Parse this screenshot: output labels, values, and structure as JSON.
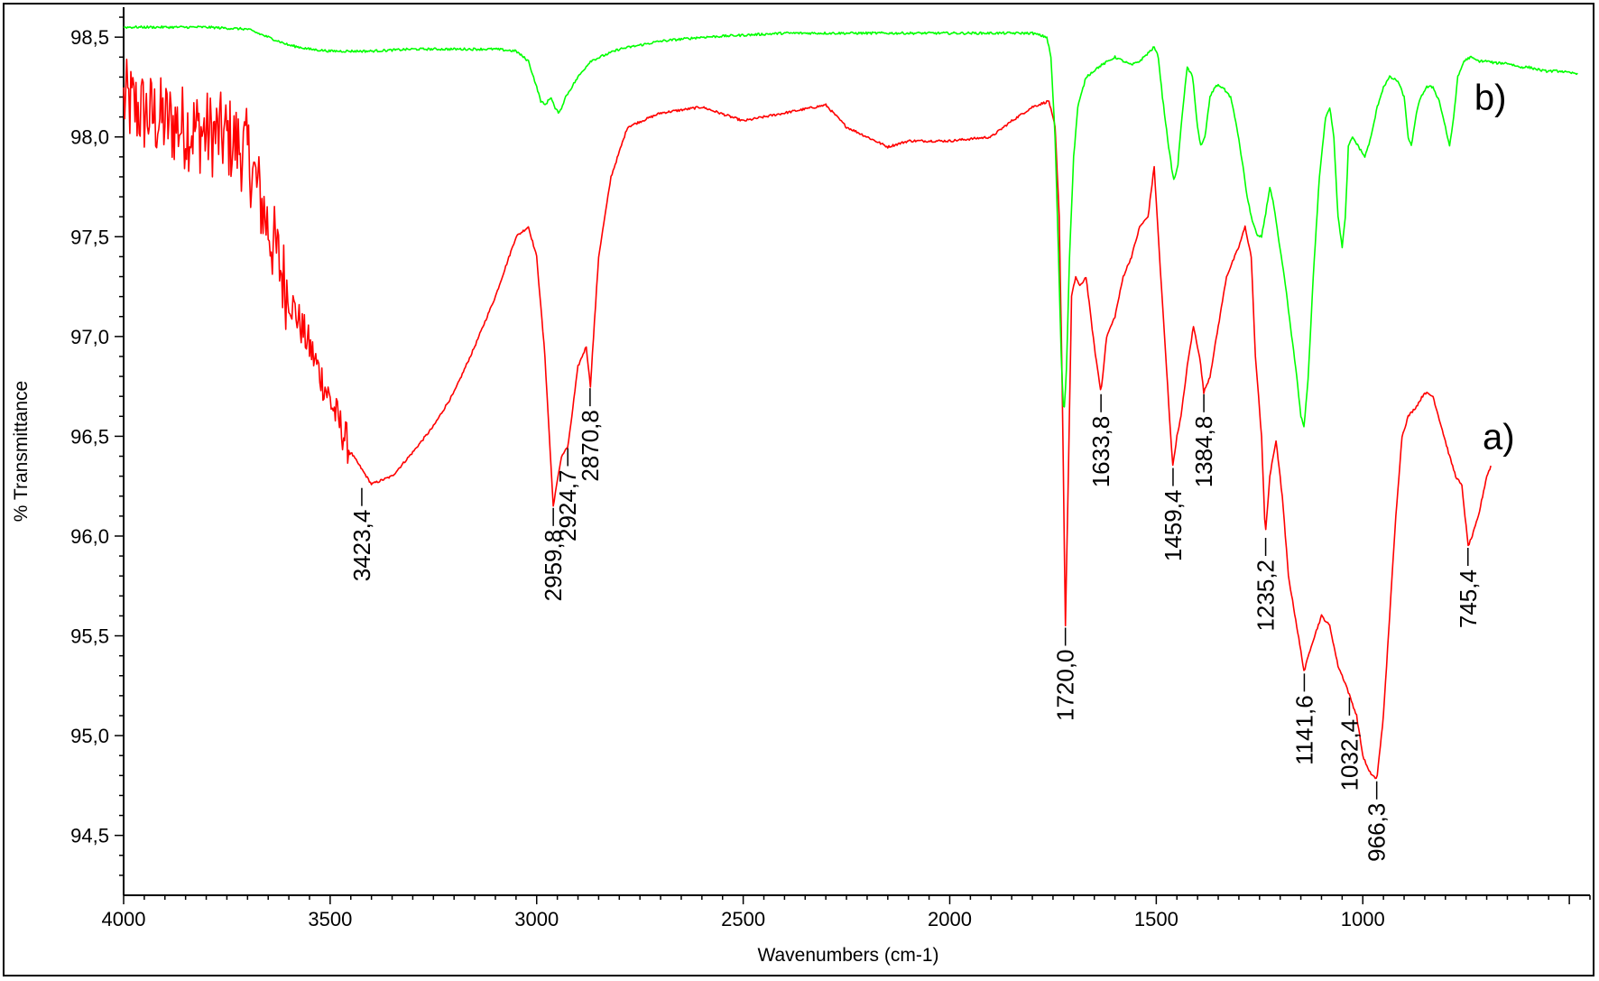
{
  "chart_data": {
    "type": "line",
    "title": "",
    "xlabel": "Wavenumbers (cm-1)",
    "ylabel": "% Transmittance",
    "xlim": [
      4000,
      450
    ],
    "ylim": [
      94.2,
      98.65
    ],
    "x_reversed": true,
    "grid": false,
    "legend": "none",
    "x_ticks": [
      {
        "value": 4000,
        "label": "4000"
      },
      {
        "value": 3500,
        "label": "3500"
      },
      {
        "value": 3000,
        "label": "3000"
      },
      {
        "value": 2500,
        "label": "2500"
      },
      {
        "value": 2000,
        "label": "2000"
      },
      {
        "value": 1500,
        "label": "1500"
      },
      {
        "value": 1000,
        "label": "1000"
      }
    ],
    "y_ticks": [
      {
        "value": 98.5,
        "label": "98,5"
      },
      {
        "value": 98.0,
        "label": "98,0"
      },
      {
        "value": 97.5,
        "label": "97,5"
      },
      {
        "value": 97.0,
        "label": "97,0"
      },
      {
        "value": 96.5,
        "label": "96,5"
      },
      {
        "value": 96.0,
        "label": "96,0"
      },
      {
        "value": 95.5,
        "label": "95,5"
      },
      {
        "value": 95.0,
        "label": "95,0"
      },
      {
        "value": 94.5,
        "label": "94,5"
      }
    ],
    "series": [
      {
        "name": "a)",
        "color": "#ff0000",
        "noise_above": 3450,
        "points": [
          [
            4000,
            98.18
          ],
          [
            3950,
            98.12
          ],
          [
            3900,
            98.08
          ],
          [
            3850,
            98.05
          ],
          [
            3800,
            98.02
          ],
          [
            3750,
            98.0
          ],
          [
            3700,
            97.92
          ],
          [
            3650,
            97.55
          ],
          [
            3600,
            97.2
          ],
          [
            3550,
            96.95
          ],
          [
            3500,
            96.68
          ],
          [
            3450,
            96.42
          ],
          [
            3400,
            96.26
          ],
          [
            3350,
            96.3
          ],
          [
            3300,
            96.42
          ],
          [
            3250,
            96.55
          ],
          [
            3200,
            96.72
          ],
          [
            3150,
            96.95
          ],
          [
            3100,
            97.2
          ],
          [
            3050,
            97.5
          ],
          [
            3020,
            97.55
          ],
          [
            3000,
            97.4
          ],
          [
            2980,
            96.9
          ],
          [
            2960,
            96.15
          ],
          [
            2940,
            96.4
          ],
          [
            2924,
            96.45
          ],
          [
            2900,
            96.85
          ],
          [
            2880,
            96.95
          ],
          [
            2870,
            96.75
          ],
          [
            2850,
            97.4
          ],
          [
            2820,
            97.8
          ],
          [
            2780,
            98.05
          ],
          [
            2700,
            98.12
          ],
          [
            2600,
            98.15
          ],
          [
            2500,
            98.08
          ],
          [
            2400,
            98.12
          ],
          [
            2300,
            98.16
          ],
          [
            2250,
            98.05
          ],
          [
            2200,
            98.0
          ],
          [
            2150,
            97.95
          ],
          [
            2100,
            97.98
          ],
          [
            2000,
            97.98
          ],
          [
            1900,
            98.0
          ],
          [
            1850,
            98.08
          ],
          [
            1800,
            98.15
          ],
          [
            1760,
            98.18
          ],
          [
            1745,
            98.05
          ],
          [
            1735,
            97.6
          ],
          [
            1728,
            96.8
          ],
          [
            1720,
            95.55
          ],
          [
            1712,
            96.4
          ],
          [
            1705,
            97.2
          ],
          [
            1695,
            97.3
          ],
          [
            1685,
            97.25
          ],
          [
            1670,
            97.3
          ],
          [
            1650,
            96.95
          ],
          [
            1634,
            96.72
          ],
          [
            1620,
            97.0
          ],
          [
            1600,
            97.1
          ],
          [
            1580,
            97.3
          ],
          [
            1560,
            97.4
          ],
          [
            1540,
            97.55
          ],
          [
            1520,
            97.6
          ],
          [
            1505,
            97.85
          ],
          [
            1495,
            97.5
          ],
          [
            1480,
            97.0
          ],
          [
            1468,
            96.6
          ],
          [
            1460,
            96.35
          ],
          [
            1450,
            96.5
          ],
          [
            1440,
            96.6
          ],
          [
            1425,
            96.85
          ],
          [
            1410,
            97.05
          ],
          [
            1395,
            96.9
          ],
          [
            1385,
            96.72
          ],
          [
            1370,
            96.8
          ],
          [
            1350,
            97.05
          ],
          [
            1330,
            97.3
          ],
          [
            1300,
            97.45
          ],
          [
            1285,
            97.55
          ],
          [
            1270,
            97.4
          ],
          [
            1260,
            96.9
          ],
          [
            1245,
            96.5
          ],
          [
            1236,
            96.0
          ],
          [
            1225,
            96.3
          ],
          [
            1210,
            96.48
          ],
          [
            1195,
            96.2
          ],
          [
            1180,
            95.8
          ],
          [
            1160,
            95.55
          ],
          [
            1142,
            95.32
          ],
          [
            1125,
            95.45
          ],
          [
            1100,
            95.6
          ],
          [
            1080,
            95.55
          ],
          [
            1060,
            95.35
          ],
          [
            1040,
            95.25
          ],
          [
            1032,
            95.2
          ],
          [
            1015,
            95.1
          ],
          [
            1000,
            94.9
          ],
          [
            985,
            94.82
          ],
          [
            966,
            94.78
          ],
          [
            950,
            95.1
          ],
          [
            935,
            95.6
          ],
          [
            920,
            96.1
          ],
          [
            905,
            96.5
          ],
          [
            890,
            96.6
          ],
          [
            870,
            96.65
          ],
          [
            850,
            96.72
          ],
          [
            830,
            96.7
          ],
          [
            810,
            96.55
          ],
          [
            790,
            96.4
          ],
          [
            775,
            96.3
          ],
          [
            760,
            96.25
          ],
          [
            745,
            95.95
          ],
          [
            735,
            96.0
          ],
          [
            720,
            96.1
          ],
          [
            700,
            96.3
          ],
          [
            690,
            96.35
          ]
        ]
      },
      {
        "name": "b)",
        "color": "#00ff00",
        "noise_above": 0,
        "points": [
          [
            4000,
            98.55
          ],
          [
            3900,
            98.55
          ],
          [
            3800,
            98.55
          ],
          [
            3700,
            98.54
          ],
          [
            3650,
            98.5
          ],
          [
            3600,
            98.46
          ],
          [
            3550,
            98.44
          ],
          [
            3500,
            98.43
          ],
          [
            3400,
            98.43
          ],
          [
            3300,
            98.44
          ],
          [
            3200,
            98.44
          ],
          [
            3100,
            98.44
          ],
          [
            3050,
            98.43
          ],
          [
            3020,
            98.38
          ],
          [
            3000,
            98.25
          ],
          [
            2990,
            98.18
          ],
          [
            2980,
            98.16
          ],
          [
            2965,
            98.2
          ],
          [
            2955,
            98.14
          ],
          [
            2945,
            98.12
          ],
          [
            2930,
            98.2
          ],
          [
            2900,
            98.3
          ],
          [
            2870,
            98.38
          ],
          [
            2800,
            98.44
          ],
          [
            2700,
            98.48
          ],
          [
            2600,
            98.5
          ],
          [
            2500,
            98.51
          ],
          [
            2400,
            98.52
          ],
          [
            2300,
            98.52
          ],
          [
            2200,
            98.52
          ],
          [
            2100,
            98.52
          ],
          [
            2000,
            98.52
          ],
          [
            1900,
            98.52
          ],
          [
            1800,
            98.52
          ],
          [
            1765,
            98.5
          ],
          [
            1755,
            98.4
          ],
          [
            1745,
            98.0
          ],
          [
            1738,
            97.5
          ],
          [
            1730,
            96.9
          ],
          [
            1724,
            96.6
          ],
          [
            1718,
            96.8
          ],
          [
            1710,
            97.4
          ],
          [
            1700,
            97.9
          ],
          [
            1690,
            98.15
          ],
          [
            1670,
            98.3
          ],
          [
            1640,
            98.35
          ],
          [
            1600,
            98.4
          ],
          [
            1580,
            98.38
          ],
          [
            1560,
            98.36
          ],
          [
            1540,
            98.38
          ],
          [
            1520,
            98.42
          ],
          [
            1505,
            98.45
          ],
          [
            1495,
            98.4
          ],
          [
            1485,
            98.2
          ],
          [
            1470,
            97.95
          ],
          [
            1458,
            97.78
          ],
          [
            1448,
            97.85
          ],
          [
            1438,
            98.1
          ],
          [
            1425,
            98.35
          ],
          [
            1412,
            98.3
          ],
          [
            1400,
            98.05
          ],
          [
            1392,
            97.95
          ],
          [
            1382,
            98.0
          ],
          [
            1370,
            98.2
          ],
          [
            1355,
            98.26
          ],
          [
            1340,
            98.25
          ],
          [
            1320,
            98.2
          ],
          [
            1305,
            98.05
          ],
          [
            1290,
            97.85
          ],
          [
            1280,
            97.7
          ],
          [
            1270,
            97.6
          ],
          [
            1255,
            97.5
          ],
          [
            1245,
            97.5
          ],
          [
            1235,
            97.62
          ],
          [
            1225,
            97.75
          ],
          [
            1215,
            97.65
          ],
          [
            1205,
            97.5
          ],
          [
            1190,
            97.3
          ],
          [
            1175,
            97.05
          ],
          [
            1160,
            96.8
          ],
          [
            1150,
            96.6
          ],
          [
            1142,
            96.55
          ],
          [
            1132,
            96.8
          ],
          [
            1120,
            97.3
          ],
          [
            1105,
            97.8
          ],
          [
            1090,
            98.1
          ],
          [
            1080,
            98.15
          ],
          [
            1070,
            98.0
          ],
          [
            1060,
            97.6
          ],
          [
            1050,
            97.45
          ],
          [
            1042,
            97.6
          ],
          [
            1035,
            97.95
          ],
          [
            1025,
            98.0
          ],
          [
            1010,
            97.95
          ],
          [
            995,
            97.9
          ],
          [
            980,
            98.0
          ],
          [
            965,
            98.15
          ],
          [
            950,
            98.25
          ],
          [
            935,
            98.3
          ],
          [
            915,
            98.28
          ],
          [
            900,
            98.2
          ],
          [
            890,
            98.0
          ],
          [
            882,
            97.95
          ],
          [
            872,
            98.1
          ],
          [
            860,
            98.2
          ],
          [
            845,
            98.25
          ],
          [
            830,
            98.25
          ],
          [
            815,
            98.18
          ],
          [
            800,
            98.05
          ],
          [
            790,
            97.95
          ],
          [
            780,
            98.1
          ],
          [
            770,
            98.3
          ],
          [
            755,
            98.38
          ],
          [
            740,
            98.4
          ],
          [
            720,
            98.38
          ],
          [
            700,
            98.38
          ],
          [
            680,
            98.37
          ],
          [
            650,
            98.37
          ],
          [
            620,
            98.35
          ],
          [
            600,
            98.35
          ],
          [
            580,
            98.34
          ],
          [
            560,
            98.33
          ],
          [
            540,
            98.33
          ],
          [
            520,
            98.33
          ],
          [
            500,
            98.32
          ],
          [
            478,
            98.32
          ]
        ]
      }
    ],
    "curve_labels": [
      {
        "text": "a)",
        "x": 710,
        "y": 96.5
      },
      {
        "text": "b)",
        "x": 730,
        "y": 98.2
      }
    ],
    "annotations": [
      {
        "label": "3423,4",
        "x": 3423.4,
        "y": 96.25
      },
      {
        "label": "2959,8",
        "x": 2959.8,
        "y": 96.15
      },
      {
        "label": "2924,7",
        "x": 2924.7,
        "y": 96.45
      },
      {
        "label": "2870,8",
        "x": 2870.8,
        "y": 96.75
      },
      {
        "label": "1720,0",
        "x": 1720.0,
        "y": 95.55
      },
      {
        "label": "1633,8",
        "x": 1633.8,
        "y": 96.72
      },
      {
        "label": "1459,4",
        "x": 1459.4,
        "y": 96.35
      },
      {
        "label": "1384,8",
        "x": 1384.8,
        "y": 96.72
      },
      {
        "label": "1235,2",
        "x": 1235.2,
        "y": 96.0
      },
      {
        "label": "1141,6",
        "x": 1141.6,
        "y": 95.32
      },
      {
        "label": "1032,4",
        "x": 1032.4,
        "y": 95.2
      },
      {
        "label": "966,3",
        "x": 966.3,
        "y": 94.78
      },
      {
        "label": "745,4",
        "x": 745.4,
        "y": 95.95
      }
    ]
  }
}
